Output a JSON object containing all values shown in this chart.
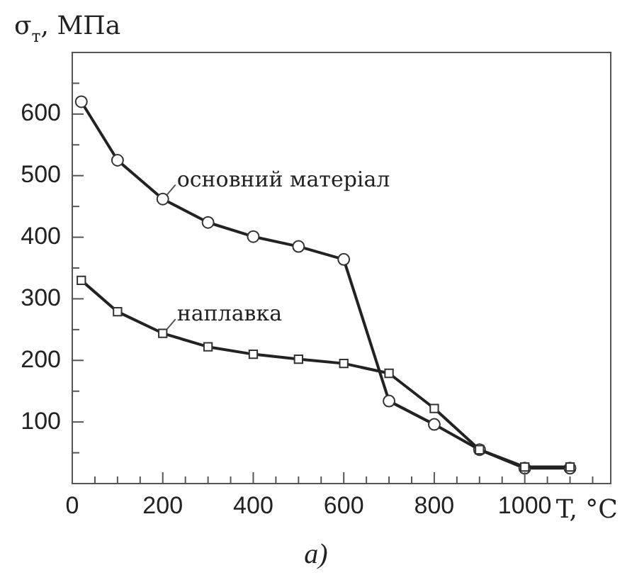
{
  "chart_data": {
    "type": "line",
    "ylabel": "σ$_{т}$, МПа",
    "xlabel": "T, °C",
    "annotations": [
      "a)"
    ],
    "xlim": [
      0,
      1190
    ],
    "ylim": [
      0,
      700
    ],
    "xticks": [
      0,
      {
        "value": 50,
        "label": null
      },
      {
        "value": 100,
        "label": null
      },
      {
        "value": 150,
        "label": null
      },
      200,
      {
        "value": 250,
        "label": null
      },
      {
        "value": 300,
        "label": null
      },
      {
        "value": 350,
        "label": null
      },
      400,
      {
        "value": 450,
        "label": null
      },
      {
        "value": 500,
        "label": null
      },
      {
        "value": 550,
        "label": null
      },
      600,
      {
        "value": 650,
        "label": null
      },
      {
        "value": 700,
        "label": null
      },
      {
        "value": 750,
        "label": null
      },
      800,
      {
        "value": 850,
        "label": null
      },
      {
        "value": 900,
        "label": null
      },
      {
        "value": 950,
        "label": null
      },
      1000,
      {
        "value": 1050,
        "label": null
      },
      {
        "value": 1100,
        "label": null
      },
      {
        "value": 1150,
        "label": null
      }
    ],
    "yticks": [
      {
        "value": 50,
        "label": null
      },
      100,
      {
        "value": 150,
        "label": null
      },
      200,
      {
        "value": 250,
        "label": null
      },
      300,
      {
        "value": 350,
        "label": null
      },
      400,
      {
        "value": 450,
        "label": null
      },
      500,
      {
        "value": 550,
        "label": null
      },
      600,
      {
        "value": 650,
        "label": null
      }
    ],
    "grid": false,
    "legend": false,
    "line_style": "solid",
    "series": [
      {
        "name": "основний матеріал",
        "color": "#222222",
        "marker": "circle",
        "x": [
          20,
          100,
          200,
          300,
          400,
          500,
          600,
          700,
          800,
          900,
          1000,
          1100
        ],
        "values": [
          620,
          525,
          462,
          424,
          401,
          385,
          364,
          134,
          96,
          55,
          25,
          25
        ]
      },
      {
        "name": "наплавка",
        "color": "#222222",
        "marker": "square",
        "x": [
          20,
          100,
          200,
          300,
          400,
          500,
          600,
          700,
          800,
          900,
          1000,
          1100
        ],
        "values": [
          330,
          279,
          244,
          222,
          210,
          202,
          195,
          179,
          122,
          55,
          27,
          27
        ]
      }
    ]
  }
}
